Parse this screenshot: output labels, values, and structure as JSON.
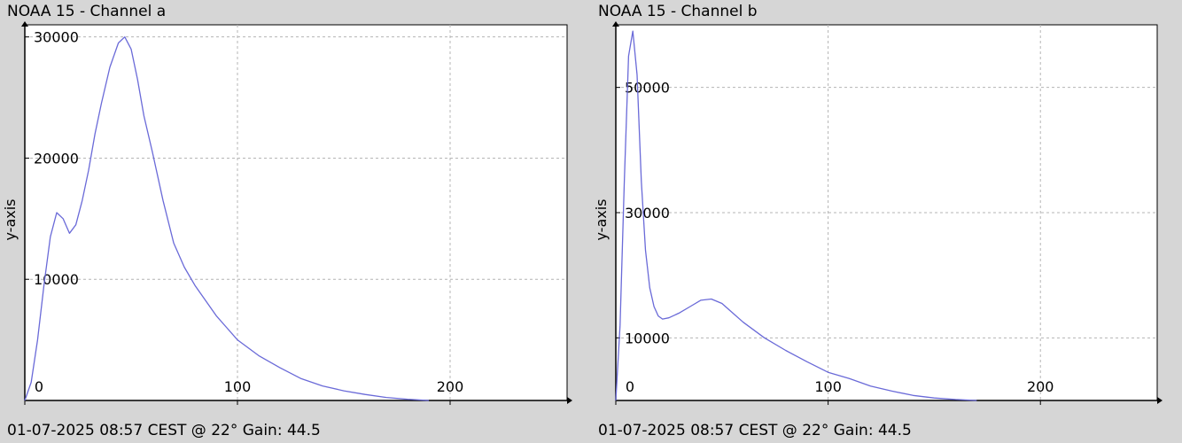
{
  "charts": [
    {
      "title": "NOAA 15 - Channel a",
      "footer": "01-07-2025 08:57 CEST @ 22° Gain: 44.5",
      "ylabel": "y-axis",
      "line_color": "#6a6ad8"
    },
    {
      "title": "NOAA 15 - Channel b",
      "footer": "01-07-2025 08:57 CEST @ 22° Gain: 44.5",
      "ylabel": "y-axis",
      "line_color": "#6a6ad8"
    }
  ],
  "chart_data": [
    {
      "type": "line",
      "title": "NOAA 15 - Channel a",
      "xlabel": "",
      "ylabel": "y-axis",
      "xlim": [
        0,
        255
      ],
      "ylim": [
        0,
        31000
      ],
      "xticks": [
        0,
        100,
        200
      ],
      "yticks": [
        10000,
        20000,
        30000
      ],
      "grid": true,
      "x": [
        0,
        3,
        6,
        9,
        12,
        15,
        18,
        21,
        24,
        27,
        30,
        33,
        36,
        40,
        44,
        47,
        50,
        53,
        56,
        60,
        65,
        70,
        75,
        80,
        90,
        100,
        110,
        120,
        130,
        140,
        150,
        160,
        170,
        180,
        190
      ],
      "y": [
        0,
        1500,
        5000,
        9500,
        13500,
        15500,
        15000,
        13800,
        14500,
        16500,
        19000,
        22000,
        24500,
        27500,
        29500,
        30000,
        29000,
        26500,
        23500,
        20500,
        16500,
        13000,
        11000,
        9500,
        7000,
        5000,
        3700,
        2700,
        1800,
        1200,
        800,
        500,
        250,
        100,
        0
      ]
    },
    {
      "type": "line",
      "title": "NOAA 15 - Channel b",
      "xlabel": "",
      "ylabel": "y-axis",
      "xlim": [
        0,
        255
      ],
      "ylim": [
        0,
        60000
      ],
      "xticks": [
        0,
        100,
        200
      ],
      "yticks": [
        10000,
        30000,
        50000
      ],
      "grid": true,
      "x": [
        0,
        2,
        4,
        6,
        8,
        10,
        12,
        14,
        16,
        18,
        20,
        22,
        25,
        30,
        35,
        40,
        45,
        50,
        55,
        60,
        70,
        80,
        90,
        100,
        110,
        120,
        130,
        140,
        150,
        160,
        170
      ],
      "y": [
        0,
        12000,
        35000,
        55000,
        59000,
        52000,
        35000,
        24000,
        18000,
        15000,
        13500,
        13000,
        13200,
        14000,
        15000,
        16000,
        16200,
        15500,
        14000,
        12500,
        10000,
        8000,
        6200,
        4500,
        3500,
        2300,
        1500,
        800,
        400,
        150,
        0
      ]
    }
  ]
}
